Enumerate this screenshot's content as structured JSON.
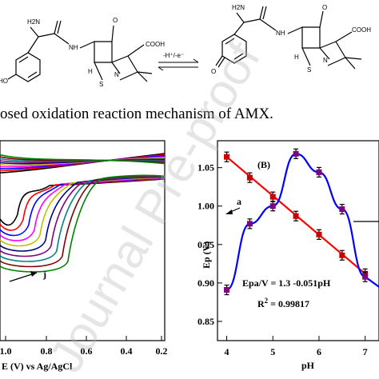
{
  "scheme": {
    "reactant_labels": {
      "nh2": "H2N",
      "nh": "NH",
      "cooh": "COOH",
      "ho": "HO",
      "s": "S",
      "n": "N",
      "h": "H",
      "o": "O"
    },
    "product_labels": {
      "nh2": "H2N",
      "nh": "NH",
      "cooh": "COOH",
      "o_left": "O",
      "s": "S",
      "n": "N",
      "h": "H",
      "o": "O"
    },
    "arrow_label": "-H⁺/-e⁻"
  },
  "caption": "osed oxidation reaction mechanism of AMX.",
  "watermark": "Journal Pre-proof",
  "chart_data": [
    {
      "type": "line",
      "panel": "A",
      "xlabel": "E (V) vs Ag/AgCl",
      "x_ticks": [
        "1.0",
        "0.8",
        "0.6",
        "0.4",
        "0.2"
      ],
      "annotations": [
        "j"
      ],
      "series_colors": [
        "#000000",
        "#ff0000",
        "#0000ff",
        "#ff00ff",
        "#c0c000",
        "#000080",
        "#800080",
        "#008080",
        "#800000",
        "#008000"
      ]
    },
    {
      "type": "line",
      "panel": "B",
      "panel_label": "(B)",
      "xlabel": "pH",
      "ylabel": "Ep (V)",
      "x_ticks": [
        4,
        5,
        6,
        7
      ],
      "y_ticks": [
        0.85,
        0.9,
        0.95,
        1.0,
        1.05
      ],
      "xlim": [
        3.8,
        7.3
      ],
      "ylim": [
        0.825,
        1.085
      ],
      "annotations": [
        "a"
      ],
      "equation": "Epa/V = 1.3 -0.051pH",
      "r2_label": "R",
      "r2_sup": "2",
      "r2_value": " = 0.99817",
      "series": [
        {
          "color": "#ff0000",
          "x": [
            4.0,
            4.5,
            5.0,
            5.5,
            6.0,
            6.5,
            7.0
          ],
          "y": [
            1.064,
            1.037,
            1.012,
            0.987,
            0.963,
            0.936,
            0.912
          ]
        },
        {
          "color": "#0000ff",
          "x": [
            4.0,
            4.5,
            5.0,
            5.5,
            6.0,
            6.5,
            7.0
          ],
          "y": [
            0.891,
            0.977,
            1.0,
            1.068,
            1.044,
            0.996,
            0.908
          ]
        }
      ]
    }
  ]
}
